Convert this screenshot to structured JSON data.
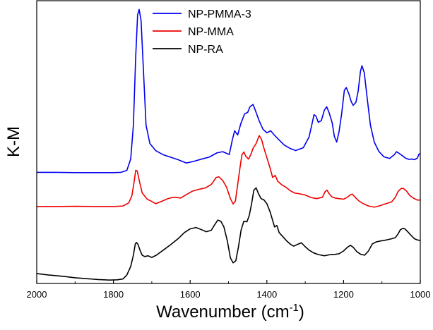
{
  "chart_data": {
    "type": "line",
    "title": "",
    "xlabel": "Wavenumber (cm",
    "xlabel_sup": "-1",
    "xlabel_close": ")",
    "ylabel": "K-M",
    "xlim": [
      2000,
      1000
    ],
    "x_reversed": true,
    "ylim": [
      0,
      1
    ],
    "y_tick_labels_shown": false,
    "x_ticks": [
      2000,
      1800,
      1600,
      1400,
      1200,
      1000
    ],
    "x_tick_labels": [
      "2000",
      "1800",
      "1600",
      "1400",
      "1200",
      "1000"
    ],
    "legend_position": "top-center",
    "series": [
      {
        "name": "NP-PMMA-3",
        "color": "#0000ee",
        "points": [
          [
            2000,
            0.393
          ],
          [
            1950,
            0.393
          ],
          [
            1900,
            0.392
          ],
          [
            1850,
            0.392
          ],
          [
            1800,
            0.392
          ],
          [
            1780,
            0.393
          ],
          [
            1765,
            0.4
          ],
          [
            1755,
            0.44
          ],
          [
            1748,
            0.56
          ],
          [
            1742,
            0.8
          ],
          [
            1737,
            0.95
          ],
          [
            1733,
            0.969
          ],
          [
            1728,
            0.93
          ],
          [
            1722,
            0.76
          ],
          [
            1715,
            0.56
          ],
          [
            1705,
            0.495
          ],
          [
            1690,
            0.47
          ],
          [
            1670,
            0.455
          ],
          [
            1650,
            0.446
          ],
          [
            1630,
            0.437
          ],
          [
            1610,
            0.426
          ],
          [
            1590,
            0.432
          ],
          [
            1570,
            0.44
          ],
          [
            1550,
            0.447
          ],
          [
            1530,
            0.462
          ],
          [
            1515,
            0.466
          ],
          [
            1505,
            0.46
          ],
          [
            1498,
            0.456
          ],
          [
            1490,
            0.508
          ],
          [
            1484,
            0.54
          ],
          [
            1476,
            0.525
          ],
          [
            1468,
            0.565
          ],
          [
            1458,
            0.6
          ],
          [
            1450,
            0.605
          ],
          [
            1444,
            0.625
          ],
          [
            1436,
            0.633
          ],
          [
            1430,
            0.612
          ],
          [
            1420,
            0.575
          ],
          [
            1410,
            0.545
          ],
          [
            1400,
            0.533
          ],
          [
            1390,
            0.54
          ],
          [
            1380,
            0.524
          ],
          [
            1370,
            0.51
          ],
          [
            1355,
            0.49
          ],
          [
            1340,
            0.478
          ],
          [
            1325,
            0.47
          ],
          [
            1305,
            0.48
          ],
          [
            1290,
            0.518
          ],
          [
            1283,
            0.56
          ],
          [
            1277,
            0.597
          ],
          [
            1272,
            0.592
          ],
          [
            1266,
            0.57
          ],
          [
            1258,
            0.576
          ],
          [
            1250,
            0.613
          ],
          [
            1244,
            0.625
          ],
          [
            1238,
            0.605
          ],
          [
            1230,
            0.57
          ],
          [
            1224,
            0.52
          ],
          [
            1218,
            0.5
          ],
          [
            1212,
            0.535
          ],
          [
            1205,
            0.6
          ],
          [
            1198,
            0.683
          ],
          [
            1193,
            0.693
          ],
          [
            1186,
            0.67
          ],
          [
            1180,
            0.643
          ],
          [
            1175,
            0.63
          ],
          [
            1168,
            0.64
          ],
          [
            1162,
            0.68
          ],
          [
            1156,
            0.75
          ],
          [
            1152,
            0.77
          ],
          [
            1146,
            0.745
          ],
          [
            1138,
            0.65
          ],
          [
            1130,
            0.56
          ],
          [
            1120,
            0.5
          ],
          [
            1108,
            0.467
          ],
          [
            1095,
            0.448
          ],
          [
            1080,
            0.442
          ],
          [
            1068,
            0.455
          ],
          [
            1062,
            0.466
          ],
          [
            1055,
            0.46
          ],
          [
            1045,
            0.45
          ],
          [
            1038,
            0.443
          ],
          [
            1030,
            0.439
          ],
          [
            1022,
            0.44
          ],
          [
            1015,
            0.438
          ],
          [
            1008,
            0.443
          ],
          [
            1003,
            0.458
          ],
          [
            1000,
            0.458
          ]
        ]
      },
      {
        "name": "NP-MMA",
        "color": "#ee0000",
        "points": [
          [
            2000,
            0.272
          ],
          [
            1950,
            0.272
          ],
          [
            1900,
            0.273
          ],
          [
            1850,
            0.272
          ],
          [
            1800,
            0.272
          ],
          [
            1775,
            0.274
          ],
          [
            1760,
            0.285
          ],
          [
            1752,
            0.31
          ],
          [
            1746,
            0.36
          ],
          [
            1742,
            0.4
          ],
          [
            1738,
            0.398
          ],
          [
            1732,
            0.36
          ],
          [
            1725,
            0.32
          ],
          [
            1712,
            0.298
          ],
          [
            1700,
            0.29
          ],
          [
            1690,
            0.282
          ],
          [
            1675,
            0.29
          ],
          [
            1660,
            0.299
          ],
          [
            1650,
            0.303
          ],
          [
            1640,
            0.305
          ],
          [
            1625,
            0.302
          ],
          [
            1610,
            0.314
          ],
          [
            1595,
            0.326
          ],
          [
            1580,
            0.332
          ],
          [
            1560,
            0.338
          ],
          [
            1545,
            0.35
          ],
          [
            1532,
            0.375
          ],
          [
            1525,
            0.377
          ],
          [
            1515,
            0.364
          ],
          [
            1505,
            0.34
          ],
          [
            1495,
            0.3
          ],
          [
            1488,
            0.281
          ],
          [
            1482,
            0.292
          ],
          [
            1476,
            0.35
          ],
          [
            1470,
            0.41
          ],
          [
            1465,
            0.455
          ],
          [
            1460,
            0.465
          ],
          [
            1455,
            0.45
          ],
          [
            1448,
            0.44
          ],
          [
            1442,
            0.455
          ],
          [
            1436,
            0.478
          ],
          [
            1428,
            0.495
          ],
          [
            1420,
            0.523
          ],
          [
            1414,
            0.51
          ],
          [
            1408,
            0.48
          ],
          [
            1400,
            0.445
          ],
          [
            1392,
            0.41
          ],
          [
            1385,
            0.375
          ],
          [
            1378,
            0.382
          ],
          [
            1372,
            0.362
          ],
          [
            1362,
            0.35
          ],
          [
            1350,
            0.34
          ],
          [
            1340,
            0.329
          ],
          [
            1328,
            0.32
          ],
          [
            1318,
            0.318
          ],
          [
            1300,
            0.313
          ],
          [
            1285,
            0.304
          ],
          [
            1270,
            0.3
          ],
          [
            1255,
            0.305
          ],
          [
            1248,
            0.325
          ],
          [
            1243,
            0.33
          ],
          [
            1238,
            0.318
          ],
          [
            1230,
            0.306
          ],
          [
            1222,
            0.302
          ],
          [
            1212,
            0.3
          ],
          [
            1200,
            0.298
          ],
          [
            1190,
            0.305
          ],
          [
            1182,
            0.314
          ],
          [
            1177,
            0.316
          ],
          [
            1170,
            0.305
          ],
          [
            1160,
            0.292
          ],
          [
            1150,
            0.283
          ],
          [
            1135,
            0.274
          ],
          [
            1120,
            0.27
          ],
          [
            1105,
            0.275
          ],
          [
            1090,
            0.282
          ],
          [
            1075,
            0.288
          ],
          [
            1065,
            0.305
          ],
          [
            1058,
            0.325
          ],
          [
            1050,
            0.336
          ],
          [
            1044,
            0.336
          ],
          [
            1036,
            0.327
          ],
          [
            1028,
            0.312
          ],
          [
            1018,
            0.302
          ],
          [
            1008,
            0.295
          ],
          [
            1000,
            0.295
          ]
        ]
      },
      {
        "name": "NP-RA",
        "color": "#000000",
        "points": [
          [
            2000,
            0.035
          ],
          [
            1970,
            0.03
          ],
          [
            1930,
            0.025
          ],
          [
            1900,
            0.02
          ],
          [
            1870,
            0.017
          ],
          [
            1840,
            0.014
          ],
          [
            1810,
            0.012
          ],
          [
            1790,
            0.013
          ],
          [
            1775,
            0.016
          ],
          [
            1765,
            0.03
          ],
          [
            1755,
            0.06
          ],
          [
            1748,
            0.1
          ],
          [
            1743,
            0.14
          ],
          [
            1740,
            0.145
          ],
          [
            1736,
            0.138
          ],
          [
            1730,
            0.115
          ],
          [
            1725,
            0.1
          ],
          [
            1718,
            0.095
          ],
          [
            1710,
            0.098
          ],
          [
            1700,
            0.092
          ],
          [
            1688,
            0.1
          ],
          [
            1670,
            0.118
          ],
          [
            1650,
            0.138
          ],
          [
            1630,
            0.16
          ],
          [
            1615,
            0.18
          ],
          [
            1600,
            0.193
          ],
          [
            1585,
            0.198
          ],
          [
            1570,
            0.19
          ],
          [
            1558,
            0.183
          ],
          [
            1545,
            0.188
          ],
          [
            1535,
            0.21
          ],
          [
            1528,
            0.224
          ],
          [
            1520,
            0.22
          ],
          [
            1512,
            0.2
          ],
          [
            1503,
            0.15
          ],
          [
            1495,
            0.09
          ],
          [
            1488,
            0.073
          ],
          [
            1481,
            0.08
          ],
          [
            1474,
            0.13
          ],
          [
            1467,
            0.19
          ],
          [
            1460,
            0.22
          ],
          [
            1452,
            0.218
          ],
          [
            1446,
            0.24
          ],
          [
            1440,
            0.28
          ],
          [
            1434,
            0.33
          ],
          [
            1428,
            0.338
          ],
          [
            1422,
            0.318
          ],
          [
            1415,
            0.3
          ],
          [
            1408,
            0.296
          ],
          [
            1400,
            0.282
          ],
          [
            1392,
            0.255
          ],
          [
            1386,
            0.228
          ],
          [
            1380,
            0.2
          ],
          [
            1374,
            0.205
          ],
          [
            1368,
            0.18
          ],
          [
            1358,
            0.165
          ],
          [
            1348,
            0.15
          ],
          [
            1338,
            0.138
          ],
          [
            1330,
            0.132
          ],
          [
            1320,
            0.138
          ],
          [
            1310,
            0.144
          ],
          [
            1300,
            0.13
          ],
          [
            1290,
            0.118
          ],
          [
            1278,
            0.108
          ],
          [
            1265,
            0.102
          ],
          [
            1250,
            0.098
          ],
          [
            1235,
            0.102
          ],
          [
            1222,
            0.103
          ],
          [
            1212,
            0.105
          ],
          [
            1200,
            0.115
          ],
          [
            1190,
            0.128
          ],
          [
            1182,
            0.135
          ],
          [
            1175,
            0.128
          ],
          [
            1165,
            0.112
          ],
          [
            1155,
            0.103
          ],
          [
            1145,
            0.1
          ],
          [
            1135,
            0.115
          ],
          [
            1125,
            0.14
          ],
          [
            1115,
            0.147
          ],
          [
            1105,
            0.15
          ],
          [
            1095,
            0.152
          ],
          [
            1085,
            0.155
          ],
          [
            1075,
            0.158
          ],
          [
            1065,
            0.162
          ],
          [
            1058,
            0.175
          ],
          [
            1052,
            0.19
          ],
          [
            1045,
            0.195
          ],
          [
            1040,
            0.193
          ],
          [
            1032,
            0.182
          ],
          [
            1024,
            0.17
          ],
          [
            1015,
            0.158
          ],
          [
            1008,
            0.154
          ],
          [
            1000,
            0.152
          ]
        ]
      }
    ]
  }
}
